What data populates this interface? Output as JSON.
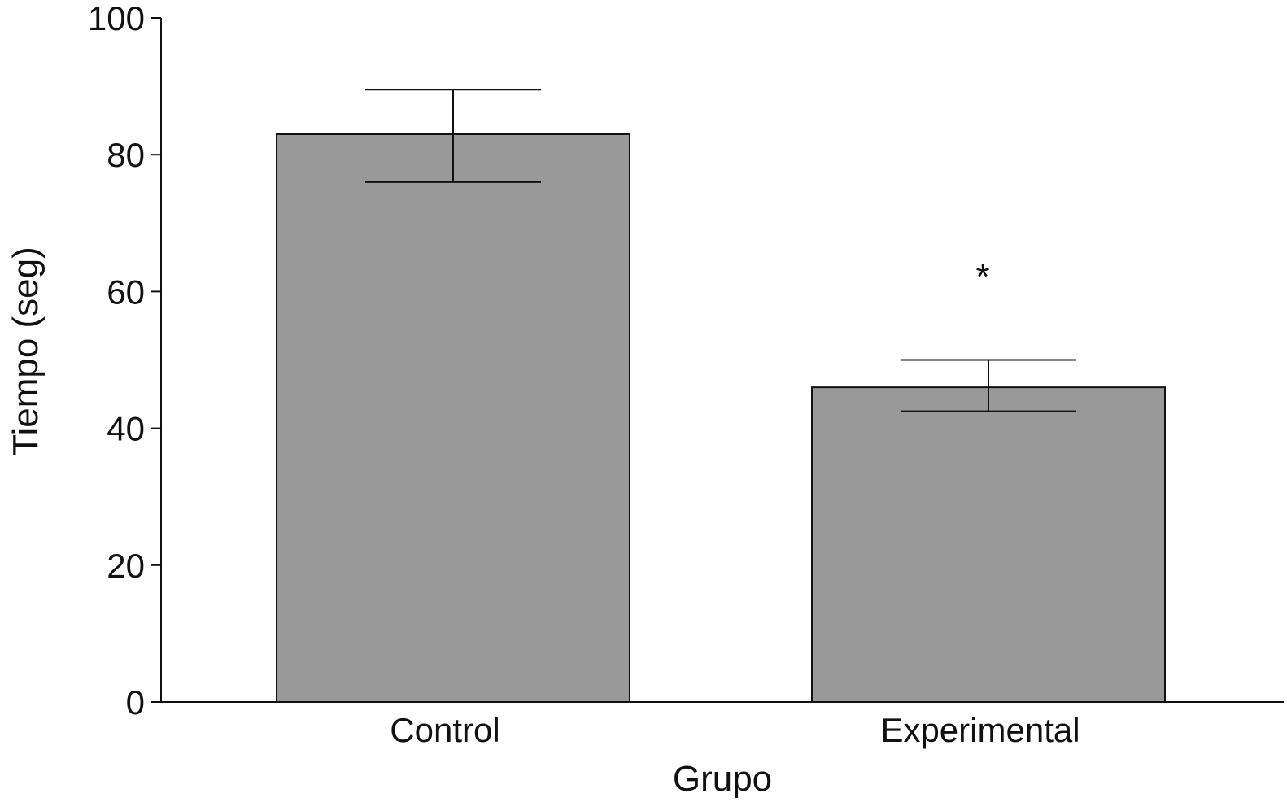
{
  "chart_data": {
    "type": "bar",
    "categories": [
      "Control",
      "Experimental"
    ],
    "values": [
      83,
      46
    ],
    "error_bars": [
      {
        "lower": 76,
        "upper": 89.5
      },
      {
        "lower": 42.5,
        "upper": 50
      }
    ],
    "xlabel": "Grupo",
    "ylabel": "Tiempo (seg)",
    "ylim": [
      0,
      100
    ],
    "yticks": [
      0,
      20,
      40,
      60,
      80,
      100
    ],
    "grid": false,
    "legend": "none",
    "annotations": [
      {
        "category": "Experimental",
        "text": "*",
        "y": 64
      }
    ],
    "colors": {
      "bar_fill": "#999999",
      "bar_stroke": "#111111",
      "axis": "#111111",
      "background": "#ffffff"
    }
  }
}
